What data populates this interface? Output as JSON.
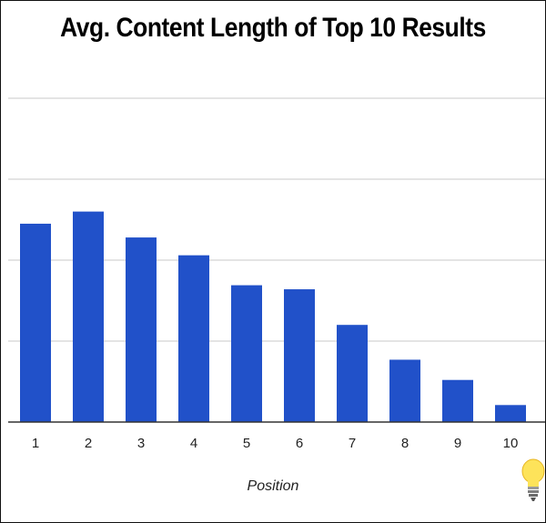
{
  "chart_data": {
    "type": "bar",
    "title": "Avg. Content Length of Top 10 Results",
    "xlabel": "Position",
    "ylabel": "",
    "categories": [
      "1",
      "2",
      "3",
      "4",
      "5",
      "6",
      "7",
      "8",
      "9",
      "10"
    ],
    "values": [
      2450,
      2600,
      2280,
      2060,
      1690,
      1640,
      1200,
      770,
      520,
      210
    ],
    "ylim": [
      0,
      4000
    ],
    "yticks": [
      0,
      1000,
      2000,
      3000,
      4000
    ],
    "ytick_labels_shown": false,
    "grid": true,
    "legend": "none",
    "bar_color": "#2151c9",
    "grid_color": "#c8c8c8"
  },
  "decorations": {
    "corner_icon": "lightbulb-icon"
  }
}
